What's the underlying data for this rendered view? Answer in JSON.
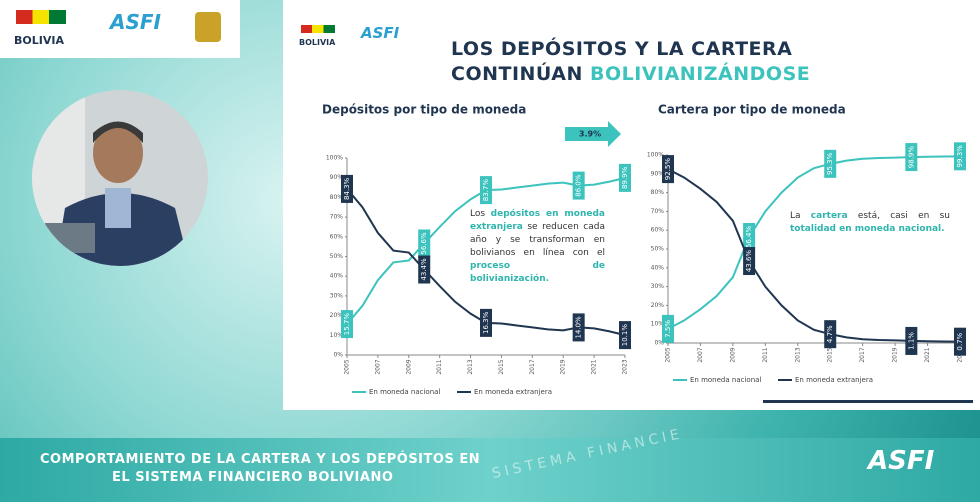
{
  "top_logos": {
    "country": "BOLIVIA",
    "agency": "ASFI"
  },
  "slide": {
    "title_line1": "LOS DEPÓSITOS Y LA CARTERA",
    "title_line2": "CONTINÚAN",
    "title_highlight": "BOLIVIANIZÁNDOSE",
    "logos": {
      "country": "BOLIVIA",
      "agency": "ASFI"
    }
  },
  "footer": {
    "title_line1": "COMPORTAMIENTO DE LA CARTERA Y LOS DEPÓSITOS EN",
    "title_line2": "EL SISTEMA FINANCIERO BOLIVIANO",
    "background_text": "SISTEMA FINANCIE",
    "logo": "ASFI"
  },
  "chart_data": [
    {
      "type": "line",
      "title": "Depósitos por tipo de moneda",
      "arrow_label": "3.9%",
      "x": [
        2005,
        2006,
        2007,
        2008,
        2009,
        2010,
        2011,
        2012,
        2013,
        2014,
        2015,
        2016,
        2017,
        2018,
        2019,
        2020,
        2021,
        2022,
        2023
      ],
      "xlim": [
        2005,
        2023
      ],
      "xticks": [
        2005,
        2007,
        2009,
        2011,
        2013,
        2015,
        2017,
        2019,
        2021,
        2023
      ],
      "ylim": [
        0,
        100
      ],
      "yticks": [
        {
          "value": 0,
          "label": "0%"
        },
        {
          "value": 10,
          "label": "10%"
        },
        {
          "value": 20,
          "label": "20%"
        },
        {
          "value": 30,
          "label": "30%"
        },
        {
          "value": 40,
          "label": "40%"
        },
        {
          "value": 50,
          "label": "50%"
        },
        {
          "value": 60,
          "label": "60%"
        },
        {
          "value": 70,
          "label": "70%"
        },
        {
          "value": 80,
          "label": "80%"
        },
        {
          "value": 90,
          "label": "90%"
        },
        {
          "value": 100,
          "label": "100%"
        }
      ],
      "legend": "bottom",
      "series": [
        {
          "name": "En moneda nacional",
          "color": "#3cc3bd",
          "values": [
            15.7,
            25,
            38,
            47,
            48,
            56.6,
            65,
            73,
            79,
            83.7,
            84,
            85,
            86,
            87,
            87.5,
            86.0,
            86.5,
            88,
            89.9
          ],
          "value_labels": [
            "15.7%",
            null,
            null,
            null,
            null,
            "56.6%",
            null,
            null,
            null,
            "83.7%",
            null,
            null,
            null,
            null,
            null,
            "86.0%",
            null,
            null,
            "89.9%"
          ]
        },
        {
          "name": "En moneda extranjera",
          "color": "#1f3550",
          "values": [
            84.3,
            75,
            62,
            53,
            52,
            43.4,
            35,
            27,
            21,
            16.3,
            16,
            15,
            14,
            13,
            12.5,
            14.0,
            13.5,
            12,
            10.1
          ],
          "value_labels": [
            "84.3%",
            null,
            null,
            null,
            null,
            "43.4%",
            null,
            null,
            null,
            "16.3%",
            null,
            null,
            null,
            null,
            null,
            "14.0%",
            null,
            null,
            "10.1%"
          ]
        }
      ],
      "annotation": [
        {
          "text": "Los ",
          "highlight": false
        },
        {
          "text": "depósitos en moneda extranjera",
          "highlight": true
        },
        {
          "text": " se reducen cada año y se transforman en bolivianos en línea con el ",
          "highlight": false
        },
        {
          "text": "proceso de bolivianización.",
          "highlight": true
        }
      ]
    },
    {
      "type": "line",
      "title": "Cartera por tipo de moneda",
      "x": [
        2005,
        2006,
        2007,
        2008,
        2009,
        2010,
        2011,
        2012,
        2013,
        2014,
        2015,
        2016,
        2017,
        2018,
        2019,
        2020,
        2021,
        2022,
        2023
      ],
      "xlim": [
        2005,
        2023
      ],
      "xticks": [
        2005,
        2007,
        2009,
        2011,
        2013,
        2015,
        2017,
        2019,
        2021,
        2023
      ],
      "ylim": [
        0,
        100
      ],
      "yticks": [
        {
          "value": 0,
          "label": "0%"
        },
        {
          "value": 10,
          "label": "10%"
        },
        {
          "value": 20,
          "label": "20%"
        },
        {
          "value": 30,
          "label": "30%"
        },
        {
          "value": 40,
          "label": "40%"
        },
        {
          "value": 50,
          "label": "50%"
        },
        {
          "value": 60,
          "label": "60%"
        },
        {
          "value": 70,
          "label": "70%"
        },
        {
          "value": 80,
          "label": "80%"
        },
        {
          "value": 90,
          "label": "90%"
        },
        {
          "value": 100,
          "label": "100%"
        }
      ],
      "legend": "bottom",
      "series": [
        {
          "name": "En moneda nacional",
          "color": "#3cc3bd",
          "values": [
            7.5,
            12,
            18,
            25,
            35,
            56.4,
            70,
            80,
            88,
            93,
            95.3,
            97,
            98,
            98.4,
            98.6,
            98.9,
            99.1,
            99.2,
            99.3
          ],
          "value_labels": [
            "7.5%",
            null,
            null,
            null,
            null,
            "56.4%",
            null,
            null,
            null,
            null,
            "95.3%",
            null,
            null,
            null,
            null,
            "98.9%",
            null,
            null,
            "99.3%"
          ]
        },
        {
          "name": "En moneda extranjera",
          "color": "#1f3550",
          "values": [
            92.5,
            88,
            82,
            75,
            65,
            43.6,
            30,
            20,
            12,
            7,
            4.7,
            3,
            2,
            1.6,
            1.4,
            1.1,
            0.9,
            0.8,
            0.7
          ],
          "value_labels": [
            "92.5%",
            null,
            null,
            null,
            null,
            "43.6%",
            null,
            null,
            null,
            null,
            "4.7%",
            null,
            null,
            null,
            null,
            "1.1%",
            null,
            null,
            "0.7%"
          ]
        }
      ],
      "annotation": [
        {
          "text": "La ",
          "highlight": false
        },
        {
          "text": "cartera",
          "highlight": true
        },
        {
          "text": " está, casi en su ",
          "highlight": false
        },
        {
          "text": "totalidad en moneda nacional.",
          "highlight": true
        }
      ]
    }
  ]
}
